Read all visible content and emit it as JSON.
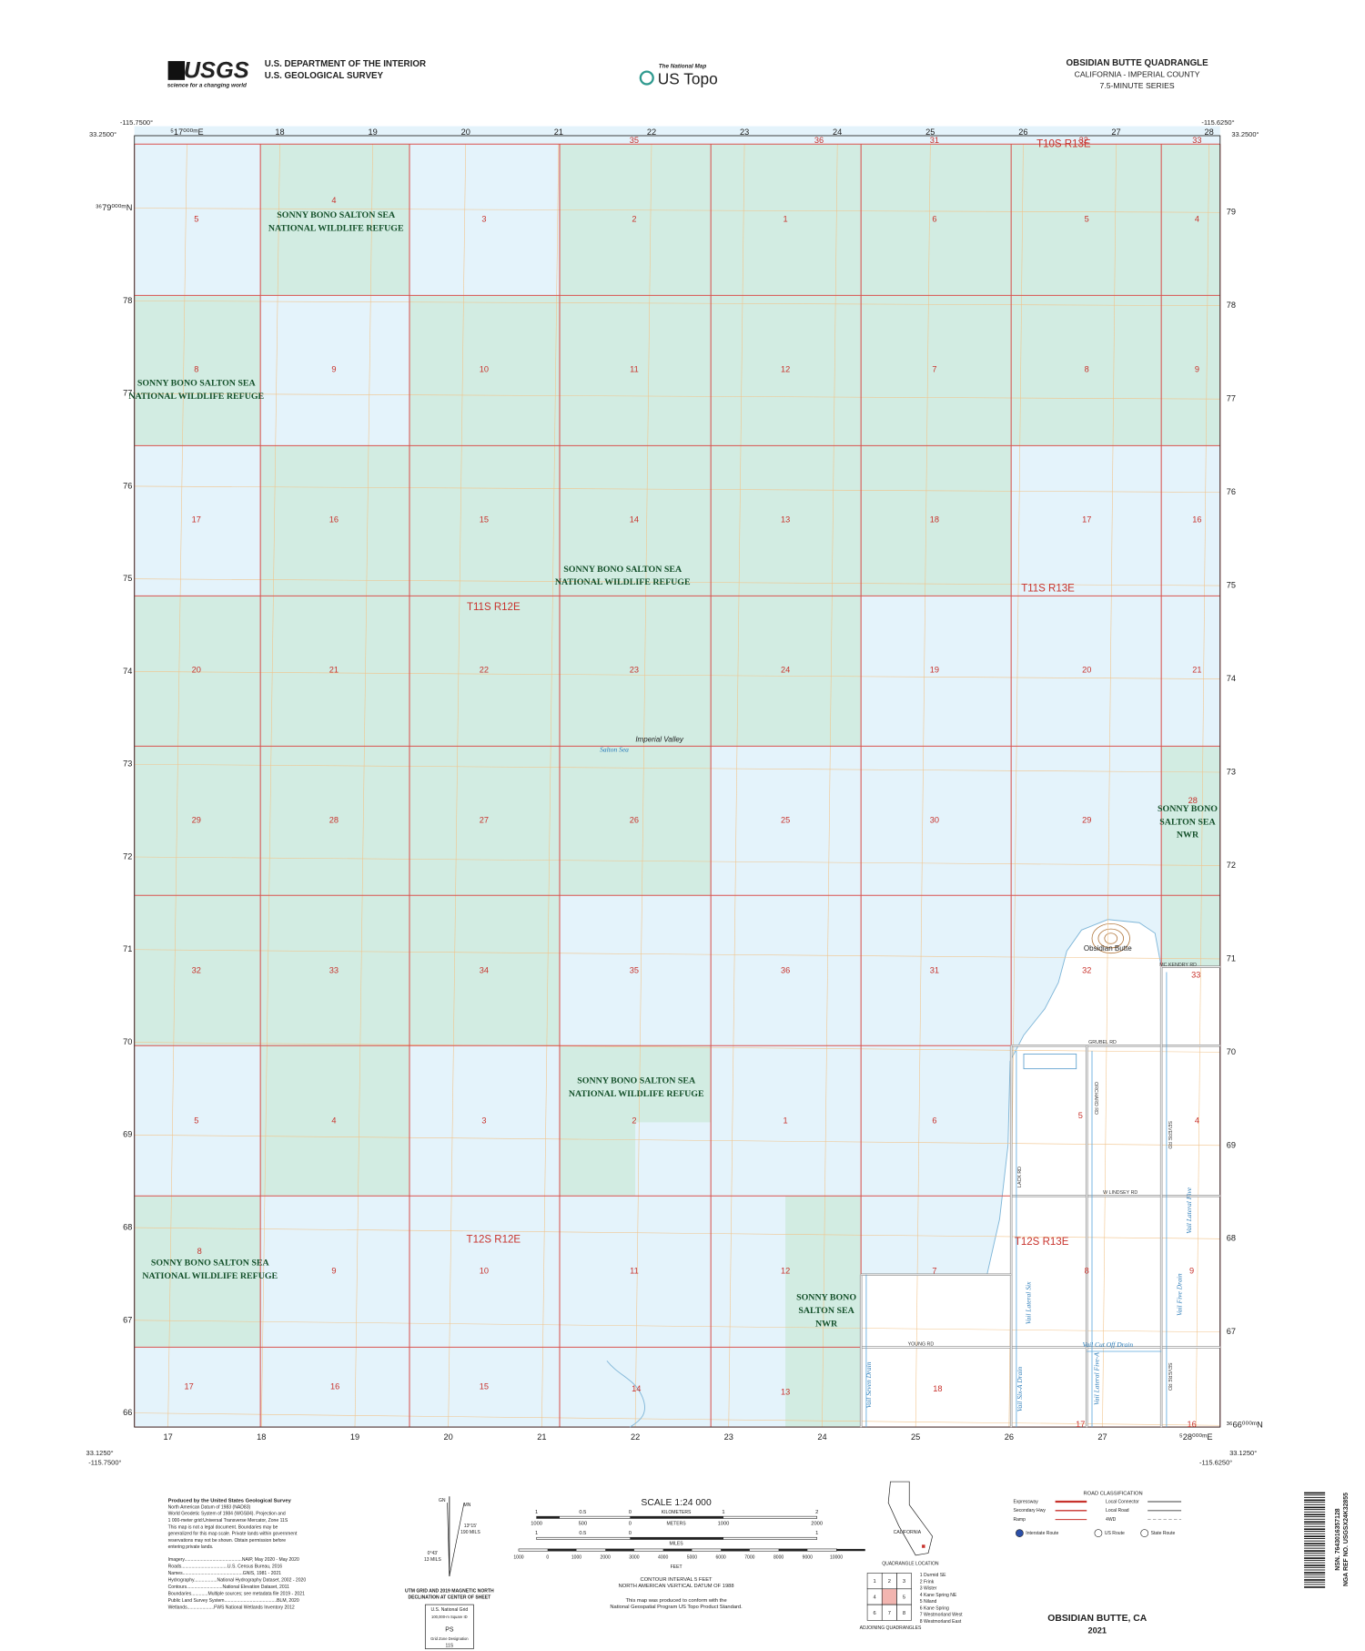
{
  "header": {
    "agency_logo": "USGS",
    "logo_tagline": "science for a changing world",
    "department": "U.S. DEPARTMENT OF THE INTERIOR",
    "survey": "U.S. GEOLOGICAL SURVEY",
    "national_map": "The National Map",
    "us_topo": "US Topo",
    "quadrangle": "OBSIDIAN BUTTE QUADRANGLE",
    "state_county": "CALIFORNIA - IMPERIAL COUNTY",
    "series": "7.5-MINUTE SERIES"
  },
  "corners": {
    "top_left_lon": "-115.7500°",
    "top_left_lat": "33.2500°",
    "top_right_lon": "-115.6250°",
    "top_right_lat": "33.2500°",
    "bottom_left_lat": "33.1250°",
    "bottom_left_lon": "-115.7500°",
    "bottom_right_lon": "-115.6250°",
    "bottom_right_lat": "33.1250°"
  },
  "grid": {
    "top": [
      "⁵17⁰⁰⁰ᵐE",
      "18",
      "19",
      "20",
      "21",
      "22",
      "23",
      "24",
      "25",
      "26",
      "27",
      "28"
    ],
    "bottom": [
      "17",
      "18",
      "19",
      "20",
      "21",
      "22",
      "23",
      "24",
      "25",
      "26",
      "27",
      "⁵28⁰⁰⁰ᵐE"
    ],
    "left": [
      "³⁶79⁰⁰⁰ᵐN",
      "78",
      "77",
      "76",
      "75",
      "74",
      "73",
      "72",
      "71",
      "70",
      "69",
      "68",
      "67",
      "66"
    ],
    "right": [
      "79",
      "78",
      "77",
      "76",
      "75",
      "74",
      "73",
      "72",
      "71",
      "70",
      "69",
      "68",
      "67",
      "³⁶66⁰⁰⁰ᵐN"
    ]
  },
  "sections": {
    "top_partial": [
      "35",
      "36",
      "31",
      "32",
      "33"
    ],
    "rows": [
      [
        "5",
        "4",
        "3",
        "2",
        "1",
        "6",
        "5",
        "4"
      ],
      [
        "8",
        "9",
        "10",
        "11",
        "12",
        "7",
        "8",
        "9"
      ],
      [
        "17",
        "16",
        "15",
        "14",
        "13",
        "18",
        "17",
        "16"
      ],
      [
        "20",
        "21",
        "22",
        "23",
        "24",
        "19",
        "20",
        "21"
      ],
      [
        "29",
        "28",
        "27",
        "26",
        "25",
        "30",
        "29",
        "28"
      ],
      [
        "32",
        "33",
        "34",
        "35",
        "36",
        "31",
        "32",
        "33"
      ],
      [
        "5",
        "4",
        "3",
        "2",
        "1",
        "6",
        "5",
        "4"
      ],
      [
        "8",
        "9",
        "10",
        "11",
        "12",
        "7",
        "8",
        "9"
      ],
      [
        "17",
        "16",
        "15",
        "14",
        "13",
        "18",
        "17",
        "16"
      ]
    ]
  },
  "townships": [
    "T10S R13E",
    "T11S R12E",
    "T11S R13E",
    "T12S R12E",
    "T12S R13E"
  ],
  "refuges": [
    [
      "SONNY BONO SALTON SEA",
      "NATIONAL WILDLIFE REFUGE"
    ],
    [
      "SONNY BONO SALTON SEA",
      "NATIONAL WILDLIFE REFUGE"
    ],
    [
      "SONNY BONO SALTON SEA",
      "NATIONAL WILDLIFE REFUGE"
    ],
    [
      "SONNY BONO SALTON SEA",
      "NATIONAL WILDLIFE REFUGE"
    ],
    [
      "SONNY BONO SALTON SEA",
      "NATIONAL WILDLIFE REFUGE"
    ],
    [
      "SONNY BONO",
      "SALTON SEA",
      "NWR"
    ],
    [
      "SONNY BONO",
      "SALTON SEA",
      "NWR"
    ]
  ],
  "places": {
    "valley": "Imperial Valley",
    "sea": "Salton Sea",
    "butte": "Obsidian Butte"
  },
  "roads": [
    "MC KENDRY RD",
    "GRUBEL RD",
    "W LINDSEY RD",
    "YOUNG RD",
    "LACK RD",
    "ORCHARD RD",
    "SEVERE RD",
    "SEVERE RD"
  ],
  "drains": [
    "Vail Seven Drain",
    "Vail Six-A Drain",
    "Vail Lateral Five-A",
    "Vail Cut Off Drain",
    "Vail Five Drain",
    "Vail Lateral Five",
    "Vail Lateral Six"
  ],
  "footer": {
    "produced": [
      "Produced by the United States Geological Survey",
      "North American Datum of 1983 (NAD83)",
      "World Geodetic System of 1984 (WGS84). Projection and",
      "1 000-meter grid:Universal Transverse Mercator, Zone 11S",
      "This map is not a legal document. Boundaries may be",
      "generalized for this map scale. Private lands within government",
      "reservations may not be shown. Obtain permission before",
      "entering private lands."
    ],
    "sources": [
      "Imagery.............................................NAIP, May 2020 - May 2020",
      "Roads....................................U.S. Census Bureau, 2016",
      "Names...............................................GNIS, 1981 - 2021",
      "Hydrography..................National Hydrography Dataset, 2002 - 2020",
      "Contours............................National Elevation Dataset, 2011",
      "Boundaries.............Multiple sources; see metadata file 2019 - 2021",
      "Public Land Survey System.........................................BLM, 2020",
      "Wetlands.....................FWS National Wetlands Inventory 2012"
    ],
    "declination": [
      "MN",
      "GN",
      "13°15'",
      "190 MILS",
      "0°43'",
      "13 MILS"
    ],
    "declination_caption": [
      "UTM GRID AND 2019 MAGNETIC NORTH",
      "DECLINATION AT CENTER OF SHEET"
    ],
    "usng": [
      "U.S. National Grid",
      "100,000-m Square ID",
      "PS",
      "Grid Zone Designation",
      "11S"
    ],
    "scale_title": "SCALE 1:24 000",
    "km_labels": [
      "1",
      "0.5",
      "0",
      "1",
      "2"
    ],
    "km_unit": "KILOMETERS",
    "m_labels": [
      "1000",
      "500",
      "0",
      "1000",
      "2000"
    ],
    "m_unit": "METERS",
    "mi_labels": [
      "1",
      "0.5",
      "0",
      "1"
    ],
    "mi_unit": "MILES",
    "ft_labels": [
      "1000",
      "0",
      "1000",
      "2000",
      "3000",
      "4000",
      "5000",
      "6000",
      "7000",
      "8000",
      "9000",
      "10000"
    ],
    "ft_unit": "FEET",
    "contour": [
      "CONTOUR INTERVAL 5 FEET",
      "NORTH AMERICAN VERTICAL DATUM OF 1988"
    ],
    "standard": [
      "This map was produced to conform with the",
      "National Geospatial Program US Topo Product Standard."
    ],
    "location_state": "CALIFORNIA",
    "location_caption": "QUADRANGLE LOCATION",
    "adjoining_grid": [
      "1",
      "2",
      "3",
      "4",
      "5",
      "6",
      "7",
      "8"
    ],
    "adjoining": [
      "1 Durmid SE",
      "2 Frink",
      "3 Wister",
      "4 Kane Spring NE",
      "5 Niland",
      "6 Kane Spring",
      "7 Westmorland West",
      "8 Westmorland East"
    ],
    "adjoining_caption": "ADJOINING QUADRANGLES",
    "road_title": "ROAD CLASSIFICATION",
    "road_left": [
      "Expressway",
      "Secondary Hwy",
      "Ramp"
    ],
    "road_right": [
      "Local Connector",
      "Local Road",
      "4WD"
    ],
    "shields": [
      "Interstate Route",
      "US Route",
      "State Route"
    ],
    "map_name": "OBSIDIAN BUTTE, CA",
    "year": "2021",
    "barcode": [
      "NSN. 7643016357128",
      "NGA REF NO. USGSX24K32855"
    ]
  }
}
